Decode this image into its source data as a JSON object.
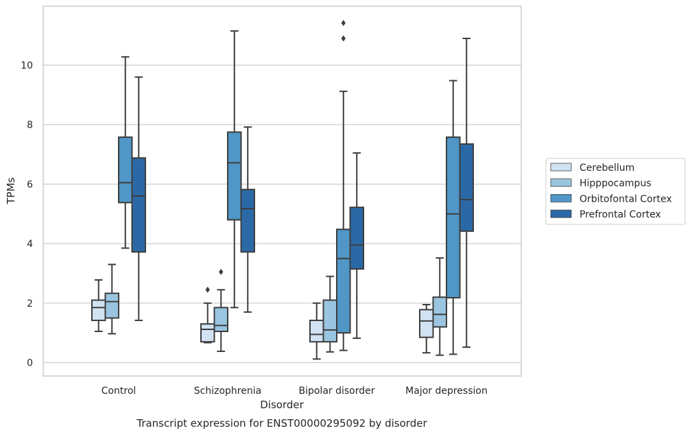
{
  "caption": "Transcript expression for ENST00000295092 by disorder",
  "chart_data": {
    "type": "boxplot",
    "xlabel": "Disorder",
    "ylabel": "TPMs",
    "ylim": [
      -0.45,
      11.9
    ],
    "yticks": [
      0,
      2,
      4,
      6,
      8,
      10
    ],
    "grid": "horizontal",
    "legend_position": "right",
    "categories": [
      "Control",
      "Schizophrenia",
      "Bipolar disorder",
      "Major depression"
    ],
    "series": [
      {
        "name": "Cerebellum",
        "color": "#d1e2f2",
        "boxes": [
          {
            "whisker_low": 1.05,
            "q1": 1.42,
            "median": 1.85,
            "q3": 2.1,
            "whisker_high": 2.78,
            "outliers": []
          },
          {
            "whisker_low": 0.67,
            "q1": 0.7,
            "median": 1.12,
            "q3": 1.3,
            "whisker_high": 2.0,
            "outliers": [
              2.45
            ]
          },
          {
            "whisker_low": 0.12,
            "q1": 0.7,
            "median": 0.95,
            "q3": 1.42,
            "whisker_high": 2.0,
            "outliers": []
          },
          {
            "whisker_low": 0.33,
            "q1": 0.85,
            "median": 1.4,
            "q3": 1.78,
            "whisker_high": 1.95,
            "outliers": []
          }
        ]
      },
      {
        "name": "Hipppocampus",
        "color": "#9ac5e0",
        "boxes": [
          {
            "whisker_low": 0.97,
            "q1": 1.5,
            "median": 2.05,
            "q3": 2.33,
            "whisker_high": 3.3,
            "outliers": []
          },
          {
            "whisker_low": 0.38,
            "q1": 1.05,
            "median": 1.25,
            "q3": 1.85,
            "whisker_high": 2.45,
            "outliers": [
              3.05
            ]
          },
          {
            "whisker_low": 0.36,
            "q1": 0.7,
            "median": 1.1,
            "q3": 2.1,
            "whisker_high": 2.9,
            "outliers": []
          },
          {
            "whisker_low": 0.25,
            "q1": 1.2,
            "median": 1.62,
            "q3": 2.2,
            "whisker_high": 3.52,
            "outliers": []
          }
        ]
      },
      {
        "name": "Orbitofontal Cortex",
        "color": "#5096c7",
        "boxes": [
          {
            "whisker_low": 3.85,
            "q1": 5.38,
            "median": 6.05,
            "q3": 7.58,
            "whisker_high": 10.28,
            "outliers": []
          },
          {
            "whisker_low": 1.85,
            "q1": 4.8,
            "median": 6.72,
            "q3": 7.75,
            "whisker_high": 11.15,
            "outliers": []
          },
          {
            "whisker_low": 0.41,
            "q1": 1.0,
            "median": 3.5,
            "q3": 4.48,
            "whisker_high": 9.12,
            "outliers": [
              10.9,
              11.42
            ]
          },
          {
            "whisker_low": 0.28,
            "q1": 2.18,
            "median": 5.0,
            "q3": 7.58,
            "whisker_high": 9.48,
            "outliers": []
          }
        ]
      },
      {
        "name": "Prefrontal Cortex",
        "color": "#2b69a6",
        "boxes": [
          {
            "whisker_low": 1.42,
            "q1": 3.72,
            "median": 5.6,
            "q3": 6.88,
            "whisker_high": 9.6,
            "outliers": []
          },
          {
            "whisker_low": 1.7,
            "q1": 3.72,
            "median": 5.18,
            "q3": 5.82,
            "whisker_high": 7.92,
            "outliers": []
          },
          {
            "whisker_low": 0.82,
            "q1": 3.15,
            "median": 3.95,
            "q3": 5.22,
            "whisker_high": 7.05,
            "outliers": []
          },
          {
            "whisker_low": 0.52,
            "q1": 4.42,
            "median": 5.48,
            "q3": 7.35,
            "whisker_high": 10.9,
            "outliers": []
          }
        ]
      }
    ]
  }
}
